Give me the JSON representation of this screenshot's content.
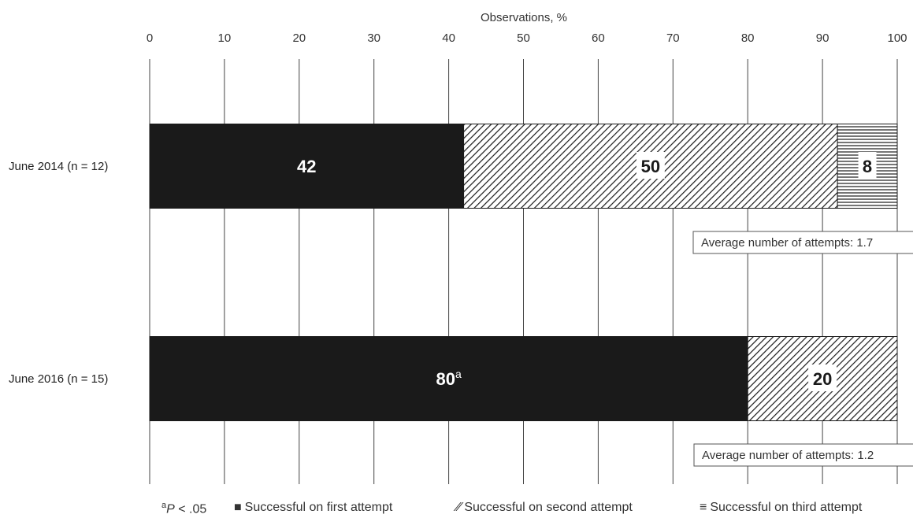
{
  "chart_data": {
    "type": "bar",
    "orientation": "horizontal",
    "stacked": true,
    "title": "",
    "xlabel": "Observations, %",
    "ylabel": "",
    "xlim": [
      0,
      100
    ],
    "x_ticks": [
      "0",
      "10",
      "20",
      "30",
      "40",
      "50",
      "60",
      "70",
      "80",
      "90",
      "100"
    ],
    "grid": "vertical",
    "categories": [
      "June 2014 (n = 12)",
      "June 2016 (n = 15)"
    ],
    "series": [
      {
        "name": "Successful on first attempt",
        "pattern": "solid",
        "color": "#1a1a1a",
        "values": [
          42,
          80
        ],
        "labels": [
          "42",
          "80"
        ],
        "label_suffix": [
          "",
          "a"
        ]
      },
      {
        "name": "Successful on second attempt",
        "pattern": "diagonal-hatch",
        "color": "#1a1a1a",
        "values": [
          50,
          20
        ],
        "labels": [
          "50",
          "20"
        ]
      },
      {
        "name": "Successful on third attempt",
        "pattern": "horizontal-hatch",
        "color": "#1a1a1a",
        "values": [
          8,
          0
        ],
        "labels": [
          "8",
          ""
        ]
      }
    ],
    "annotations": [
      "Average number of attempts: 1.7",
      "Average number of attempts: 1.2"
    ],
    "legend_placement": "bottom"
  },
  "legend": {
    "footnote_superscript": "a",
    "footnote_text": "P < .05",
    "footnote_p": "P",
    "footnote_rest": " < .05",
    "item1_symbol": "■",
    "item1_label": "Successful on first attempt",
    "item2_symbol": "⁄⁄",
    "item2_label": "Successful on second attempt",
    "item3_symbol": "≡",
    "item3_label": "Successful on third attempt"
  }
}
